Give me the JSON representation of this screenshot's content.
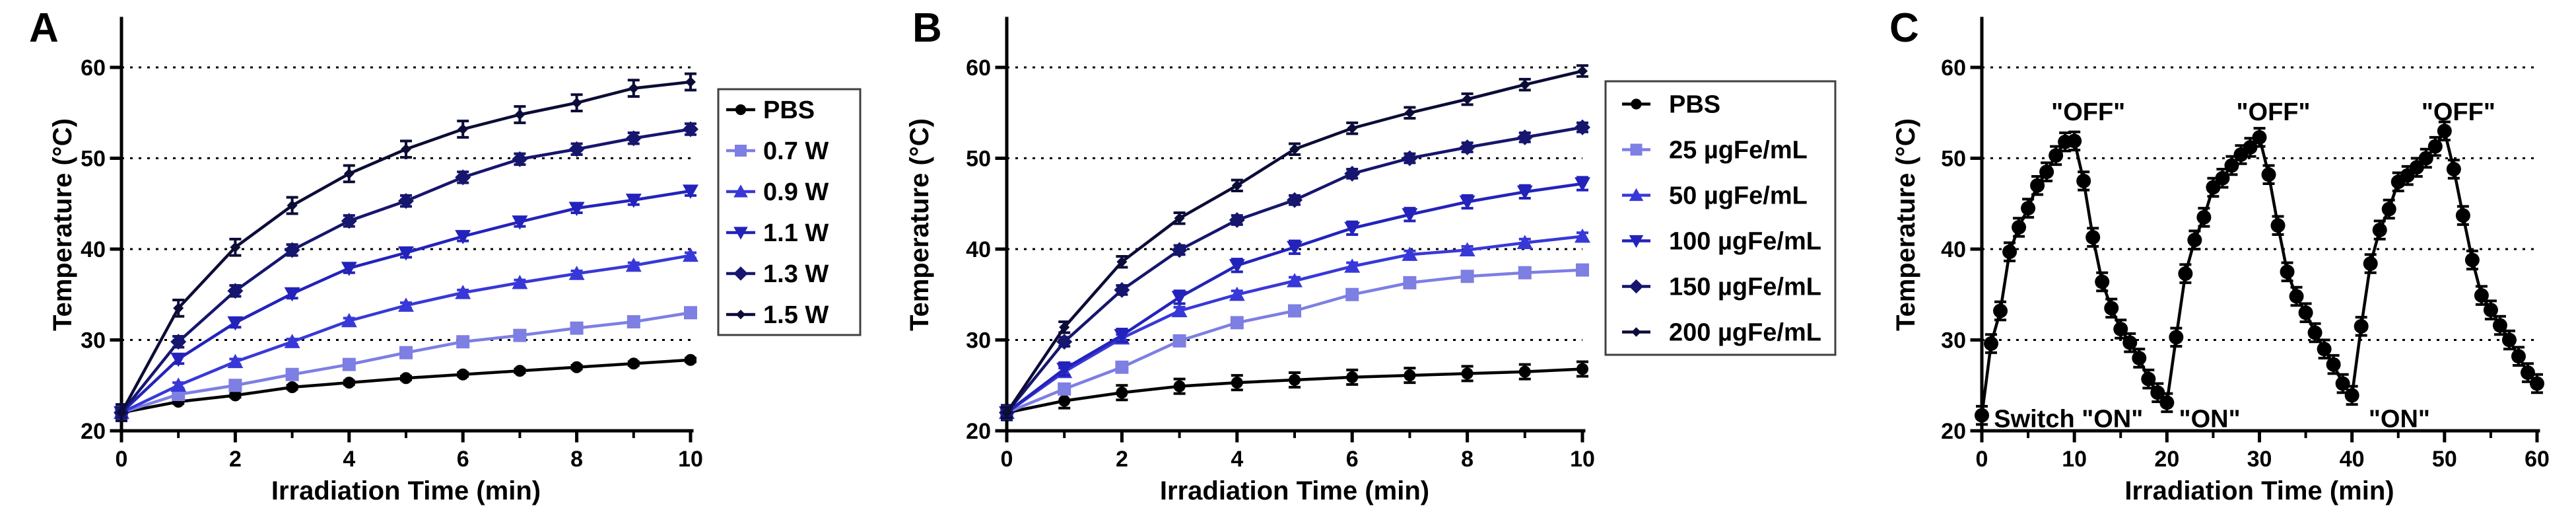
{
  "figure": {
    "background": "#ffffff",
    "text_color": "#000000",
    "accent_colors": {
      "black": "#000000",
      "light_blue": "#7d7fe3",
      "blue": "#3838d8",
      "deep_blue": "#2323bb",
      "navy": "#16166e",
      "dark_navy": "#0c0c38"
    }
  },
  "chart_data": [
    {
      "panel_label": "A",
      "type": "line",
      "xlabel": "Irradiation Time (min)",
      "ylabel": "Temperature (°C)",
      "xlim": [
        0,
        10
      ],
      "ylim": [
        20,
        65
      ],
      "xticks": [
        0,
        2,
        4,
        6,
        8,
        10
      ],
      "xminorticks": [
        1,
        3,
        5,
        7,
        9
      ],
      "yticks": [
        20,
        30,
        40,
        50,
        60
      ],
      "grid_y": [
        30,
        40,
        50,
        60
      ],
      "grid_style": "dashed-horizontal",
      "legend": true,
      "legend_position": "right",
      "x": [
        0,
        1,
        2,
        3,
        4,
        5,
        6,
        7,
        8,
        9,
        10
      ],
      "series": [
        {
          "name": "PBS",
          "color": "#000000",
          "marker": "circle",
          "error": 0.2,
          "values": [
            22.0,
            23.2,
            23.9,
            24.8,
            25.3,
            25.8,
            26.2,
            26.6,
            27.0,
            27.4,
            27.8
          ]
        },
        {
          "name": "0.7 W",
          "color": "#7d7fe3",
          "marker": "square",
          "error": 0.25,
          "values": [
            22.0,
            24.0,
            25.0,
            26.2,
            27.3,
            28.6,
            29.8,
            30.5,
            31.3,
            32.0,
            33.0
          ]
        },
        {
          "name": "0.9 W",
          "color": "#3838d8",
          "marker": "triangle-up",
          "error": 0.3,
          "values": [
            22.0,
            25.0,
            27.6,
            29.8,
            32.1,
            33.8,
            35.2,
            36.3,
            37.3,
            38.2,
            39.3
          ]
        },
        {
          "name": "1.1 W",
          "color": "#2323bb",
          "marker": "triangle-down",
          "error": 0.5,
          "values": [
            22.0,
            27.9,
            31.9,
            35.1,
            37.9,
            39.6,
            41.4,
            43.0,
            44.5,
            45.4,
            46.4
          ]
        },
        {
          "name": "1.3 W",
          "color": "#16166e",
          "marker": "diamond",
          "error": 0.6,
          "values": [
            22.0,
            29.8,
            35.4,
            39.9,
            43.1,
            45.3,
            47.9,
            49.9,
            51.0,
            52.2,
            53.2
          ]
        },
        {
          "name": "1.5 W",
          "color": "#0c0c38",
          "marker": "diamond-small",
          "error": 0.9,
          "values": [
            22.0,
            33.5,
            40.2,
            44.8,
            48.3,
            51.0,
            53.2,
            54.8,
            56.1,
            57.7,
            58.4
          ]
        }
      ],
      "annotations": []
    },
    {
      "panel_label": "B",
      "type": "line",
      "xlabel": "Irradiation Time (min)",
      "ylabel": "Temperature (°C)",
      "xlim": [
        0,
        10
      ],
      "ylim": [
        20,
        65
      ],
      "xticks": [
        0,
        2,
        4,
        6,
        8,
        10
      ],
      "xminorticks": [
        1,
        3,
        5,
        7,
        9
      ],
      "yticks": [
        20,
        30,
        40,
        50,
        60
      ],
      "grid_y": [
        30,
        40,
        50,
        60
      ],
      "grid_style": "dashed-horizontal",
      "legend": true,
      "legend_position": "right",
      "x": [
        0,
        1,
        2,
        3,
        4,
        5,
        6,
        7,
        8,
        9,
        10
      ],
      "series": [
        {
          "name": "PBS",
          "color": "#000000",
          "marker": "circle",
          "error": 0.8,
          "values": [
            22.0,
            23.3,
            24.2,
            24.9,
            25.3,
            25.6,
            25.9,
            26.1,
            26.3,
            26.5,
            26.8
          ]
        },
        {
          "name": "25 µgFe/mL",
          "color": "#7d7fe3",
          "marker": "square",
          "error": 0.5,
          "values": [
            22.0,
            24.6,
            27.0,
            29.9,
            31.9,
            33.2,
            35.0,
            36.3,
            37.0,
            37.4,
            37.7
          ]
        },
        {
          "name": "50 µgFe/mL",
          "color": "#3838d8",
          "marker": "triangle-up",
          "error": 0.4,
          "values": [
            22.0,
            26.5,
            30.2,
            33.2,
            35.0,
            36.5,
            38.1,
            39.4,
            39.9,
            40.7,
            41.4
          ]
        },
        {
          "name": "100 µgFe/mL",
          "color": "#2323bb",
          "marker": "triangle-down",
          "error": 0.7,
          "values": [
            22.0,
            26.8,
            30.5,
            34.7,
            38.2,
            40.2,
            42.3,
            43.8,
            45.2,
            46.3,
            47.2
          ]
        },
        {
          "name": "150 µgFe/mL",
          "color": "#16166e",
          "marker": "diamond",
          "error": 0.5,
          "values": [
            22.0,
            29.8,
            35.5,
            39.9,
            43.2,
            45.4,
            48.3,
            50.0,
            51.2,
            52.3,
            53.4
          ]
        },
        {
          "name": "200 µgFe/mL",
          "color": "#0c0c38",
          "marker": "diamond-small",
          "error": 0.6,
          "values": [
            22.0,
            31.4,
            38.6,
            43.4,
            47.0,
            51.0,
            53.3,
            55.0,
            56.5,
            58.1,
            59.6
          ]
        }
      ],
      "annotations": []
    },
    {
      "panel_label": "C",
      "type": "line",
      "xlabel": "Irradiation Time (min)",
      "ylabel": "Temperature (°C)",
      "xlim": [
        0,
        60
      ],
      "ylim": [
        20,
        65
      ],
      "xticks": [
        0,
        10,
        20,
        30,
        40,
        50,
        60
      ],
      "xminorticks": [
        5,
        15,
        25,
        35,
        45,
        55
      ],
      "yticks": [
        20,
        30,
        40,
        50,
        60
      ],
      "grid_y": [
        30,
        40,
        50,
        60
      ],
      "grid_style": "dashed-horizontal",
      "legend": false,
      "x": [
        0,
        1,
        2,
        3,
        4,
        5,
        6,
        7,
        8,
        9,
        10,
        11,
        12,
        13,
        14,
        15,
        16,
        17,
        18,
        19,
        20,
        21,
        22,
        23,
        24,
        25,
        26,
        27,
        28,
        29,
        30,
        31,
        32,
        33,
        34,
        35,
        36,
        37,
        38,
        39,
        40,
        41,
        42,
        43,
        44,
        45,
        46,
        47,
        48,
        49,
        50,
        51,
        52,
        53,
        54,
        55,
        56,
        57,
        58,
        59,
        60
      ],
      "series": [
        {
          "name": "",
          "color": "#000000",
          "marker": "circle",
          "msize": 11,
          "error": 1.0,
          "values": [
            21.7,
            29.6,
            33.2,
            39.7,
            42.4,
            44.5,
            47.0,
            48.5,
            50.3,
            51.8,
            51.9,
            47.5,
            41.3,
            36.4,
            33.5,
            31.2,
            29.7,
            28.0,
            25.7,
            24.2,
            23.1,
            30.3,
            37.3,
            41.0,
            43.5,
            46.8,
            47.8,
            49.2,
            50.4,
            51.2,
            52.3,
            48.2,
            42.6,
            37.5,
            34.8,
            33.0,
            30.8,
            29.0,
            27.3,
            25.2,
            23.9,
            31.5,
            38.4,
            42.1,
            44.4,
            47.4,
            48.1,
            49.0,
            50.0,
            51.3,
            53.0,
            48.8,
            43.7,
            38.8,
            34.9,
            33.3,
            31.6,
            30.0,
            28.2,
            26.4,
            25.2
          ]
        }
      ],
      "annotations": [
        {
          "text": "Switch \"ON\"",
          "x": 1.3,
          "y": 20.4,
          "anchor": "start"
        },
        {
          "text": "\"OFF\"",
          "x": 11.5,
          "y": 54.2,
          "anchor": "middle"
        },
        {
          "text": "\"ON\"",
          "x": 21.3,
          "y": 20.4,
          "anchor": "start"
        },
        {
          "text": "\"OFF\"",
          "x": 31.5,
          "y": 54.2,
          "anchor": "middle"
        },
        {
          "text": "\"ON\"",
          "x": 41.8,
          "y": 20.4,
          "anchor": "start"
        },
        {
          "text": "\"OFF\"",
          "x": 51.5,
          "y": 54.2,
          "anchor": "middle"
        }
      ]
    }
  ]
}
